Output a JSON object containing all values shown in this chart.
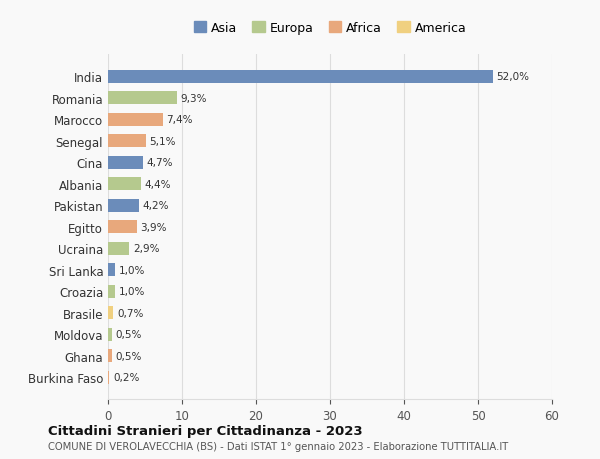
{
  "countries": [
    "India",
    "Romania",
    "Marocco",
    "Senegal",
    "Cina",
    "Albania",
    "Pakistan",
    "Egitto",
    "Ucraina",
    "Sri Lanka",
    "Croazia",
    "Brasile",
    "Moldova",
    "Ghana",
    "Burkina Faso"
  ],
  "values": [
    52.0,
    9.3,
    7.4,
    5.1,
    4.7,
    4.4,
    4.2,
    3.9,
    2.9,
    1.0,
    1.0,
    0.7,
    0.5,
    0.5,
    0.2
  ],
  "labels": [
    "52,0%",
    "9,3%",
    "7,4%",
    "5,1%",
    "4,7%",
    "4,4%",
    "4,2%",
    "3,9%",
    "2,9%",
    "1,0%",
    "1,0%",
    "0,7%",
    "0,5%",
    "0,5%",
    "0,2%"
  ],
  "continents": [
    "Asia",
    "Europa",
    "Africa",
    "Africa",
    "Asia",
    "Europa",
    "Asia",
    "Africa",
    "Europa",
    "Asia",
    "Europa",
    "America",
    "Europa",
    "Africa",
    "Africa"
  ],
  "continent_colors": {
    "Asia": "#6b8cba",
    "Europa": "#b5c98e",
    "Africa": "#e8a87c",
    "America": "#f0d080"
  },
  "legend_order": [
    "Asia",
    "Europa",
    "Africa",
    "America"
  ],
  "title": "Cittadini Stranieri per Cittadinanza - 2023",
  "subtitle": "COMUNE DI VEROLAVECCHIA (BS) - Dati ISTAT 1° gennaio 2023 - Elaborazione TUTTITALIA.IT",
  "xlim": [
    0,
    60
  ],
  "xticks": [
    0,
    10,
    20,
    30,
    40,
    50,
    60
  ],
  "background_color": "#f9f9f9",
  "grid_color": "#dddddd",
  "bar_height": 0.6
}
